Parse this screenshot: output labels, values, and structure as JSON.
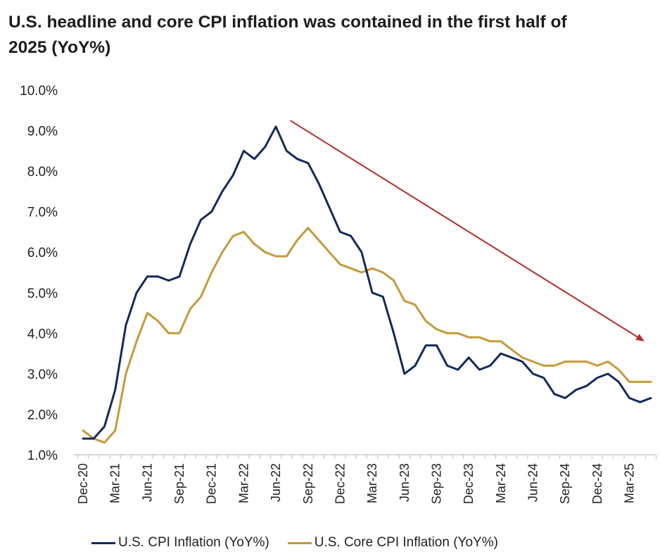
{
  "title": "U.S. headline and core CPI inflation was contained in the first half of 2025 (YoY%)",
  "colors": {
    "headline": "#14295a",
    "core": "#c49a3a",
    "arrow": "#b0302a",
    "axis": "#bfbfbf"
  },
  "chart_data": {
    "type": "line",
    "title": "U.S. headline and core CPI inflation was contained in the first half of 2025 (YoY%)",
    "x": [
      "Dec-20",
      "Jan-21",
      "Feb-21",
      "Mar-21",
      "Apr-21",
      "May-21",
      "Jun-21",
      "Jul-21",
      "Aug-21",
      "Sep-21",
      "Oct-21",
      "Nov-21",
      "Dec-21",
      "Jan-22",
      "Feb-22",
      "Mar-22",
      "Apr-22",
      "May-22",
      "Jun-22",
      "Jul-22",
      "Aug-22",
      "Sep-22",
      "Oct-22",
      "Nov-22",
      "Dec-22",
      "Jan-23",
      "Feb-23",
      "Mar-23",
      "Apr-23",
      "May-23",
      "Jun-23",
      "Jul-23",
      "Aug-23",
      "Sep-23",
      "Oct-23",
      "Nov-23",
      "Dec-23",
      "Jan-24",
      "Feb-24",
      "Mar-24",
      "Apr-24",
      "May-24",
      "Jun-24",
      "Jul-24",
      "Aug-24",
      "Sep-24",
      "Oct-24",
      "Nov-24",
      "Dec-24",
      "Jan-25",
      "Feb-25",
      "Mar-25",
      "Apr-25",
      "May-25"
    ],
    "tick_labels": [
      "Dec-20",
      "Mar-21",
      "Jun-21",
      "Sep-21",
      "Dec-21",
      "Mar-22",
      "Jun-22",
      "Sep-22",
      "Dec-22",
      "Mar-23",
      "Jun-23",
      "Sep-23",
      "Dec-23",
      "Mar-24",
      "Jun-24",
      "Sep-24",
      "Dec-24",
      "Mar-25"
    ],
    "ylim": [
      1.0,
      10.0
    ],
    "yticks": [
      "1.0%",
      "2.0%",
      "3.0%",
      "4.0%",
      "5.0%",
      "6.0%",
      "7.0%",
      "8.0%",
      "9.0%",
      "10.0%"
    ],
    "series": [
      {
        "name": "U.S. CPI Inflation (YoY%)",
        "values": [
          1.4,
          1.4,
          1.7,
          2.6,
          4.2,
          5.0,
          5.4,
          5.4,
          5.3,
          5.4,
          6.2,
          6.8,
          7.0,
          7.5,
          7.9,
          8.5,
          8.3,
          8.6,
          9.1,
          8.5,
          8.3,
          8.2,
          7.7,
          7.1,
          6.5,
          6.4,
          6.0,
          5.0,
          4.9,
          4.0,
          3.0,
          3.2,
          3.7,
          3.7,
          3.2,
          3.1,
          3.4,
          3.1,
          3.2,
          3.5,
          3.4,
          3.3,
          3.0,
          2.9,
          2.5,
          2.4,
          2.6,
          2.7,
          2.9,
          3.0,
          2.8,
          2.4,
          2.3,
          2.4
        ]
      },
      {
        "name": "U.S. Core CPI Inflation (YoY%)",
        "values": [
          1.6,
          1.4,
          1.3,
          1.6,
          3.0,
          3.8,
          4.5,
          4.3,
          4.0,
          4.0,
          4.6,
          4.9,
          5.5,
          6.0,
          6.4,
          6.5,
          6.2,
          6.0,
          5.9,
          5.9,
          6.3,
          6.6,
          6.3,
          6.0,
          5.7,
          5.6,
          5.5,
          5.6,
          5.5,
          5.3,
          4.8,
          4.7,
          4.3,
          4.1,
          4.0,
          4.0,
          3.9,
          3.9,
          3.8,
          3.8,
          3.6,
          3.4,
          3.3,
          3.2,
          3.2,
          3.3,
          3.3,
          3.3,
          3.2,
          3.3,
          3.1,
          2.8,
          2.8,
          2.8
        ]
      }
    ],
    "annotations": [
      {
        "type": "arrow",
        "description": "downward trend arrow",
        "from": [
          "Aug-22",
          9.25
        ],
        "to": [
          "May-25",
          3.8
        ]
      }
    ],
    "grid": false,
    "legend": "bottom"
  }
}
